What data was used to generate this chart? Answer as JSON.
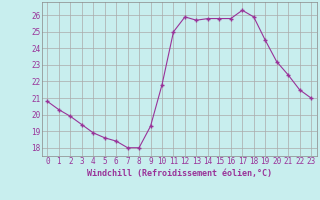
{
  "x": [
    0,
    1,
    2,
    3,
    4,
    5,
    6,
    7,
    8,
    9,
    10,
    11,
    12,
    13,
    14,
    15,
    16,
    17,
    18,
    19,
    20,
    21,
    22,
    23
  ],
  "y": [
    20.8,
    20.3,
    19.9,
    19.4,
    18.9,
    18.6,
    18.4,
    18.0,
    18.0,
    19.3,
    21.8,
    25.0,
    25.9,
    25.7,
    25.8,
    25.8,
    25.8,
    26.3,
    25.9,
    24.5,
    23.2,
    22.4,
    21.5,
    21.0
  ],
  "line_color": "#993399",
  "marker": "+",
  "bg_color": "#c8eeee",
  "grid_color": "#aaaaaa",
  "text_color": "#993399",
  "xlabel": "Windchill (Refroidissement éolien,°C)",
  "ylim": [
    17.5,
    26.8
  ],
  "xlim": [
    -0.5,
    23.5
  ],
  "yticks": [
    18,
    19,
    20,
    21,
    22,
    23,
    24,
    25,
    26
  ],
  "xticks": [
    0,
    1,
    2,
    3,
    4,
    5,
    6,
    7,
    8,
    9,
    10,
    11,
    12,
    13,
    14,
    15,
    16,
    17,
    18,
    19,
    20,
    21,
    22,
    23
  ]
}
